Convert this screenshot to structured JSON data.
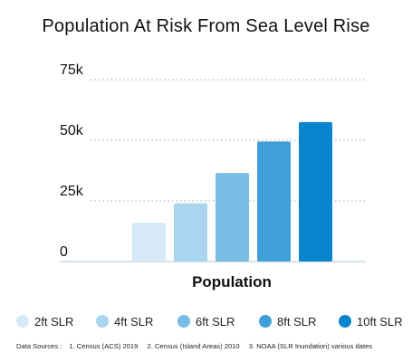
{
  "chart_data": {
    "type": "bar",
    "title": "Population At Risk From Sea Level Rise",
    "xlabel": "Population",
    "ylabel": "",
    "categories": [
      "2ft SLR",
      "4ft SLR",
      "6ft SLR",
      "8ft SLR",
      "10ft SLR"
    ],
    "values": [
      16000,
      24000,
      36500,
      49500,
      57500
    ],
    "colors": [
      "#d5e9f6",
      "#a9d5ee",
      "#78bde4",
      "#3f9fd8",
      "#0a85cd"
    ],
    "ylim": [
      0,
      75000
    ],
    "yticks": [
      0,
      25000,
      50000,
      75000
    ],
    "ytick_labels": [
      "0",
      "25k",
      "50k",
      "75k"
    ],
    "grid": true,
    "grid_style": "dotted",
    "legend": "bottom"
  },
  "legend": {
    "items": [
      {
        "label": "2ft SLR",
        "color": "#d5e9f6"
      },
      {
        "label": "4ft SLR",
        "color": "#a9d5ee"
      },
      {
        "label": "6ft SLR",
        "color": "#78bde4"
      },
      {
        "label": "8ft SLR",
        "color": "#3f9fd8"
      },
      {
        "label": "10ft SLR",
        "color": "#0a85cd"
      }
    ]
  },
  "data_sources": {
    "label": "Data Sources :",
    "items": [
      "1. Census (ACS) 2019",
      "2. Census (Island Areas) 2010",
      "3. NOAA (SLR Inundation) various dates"
    ]
  }
}
